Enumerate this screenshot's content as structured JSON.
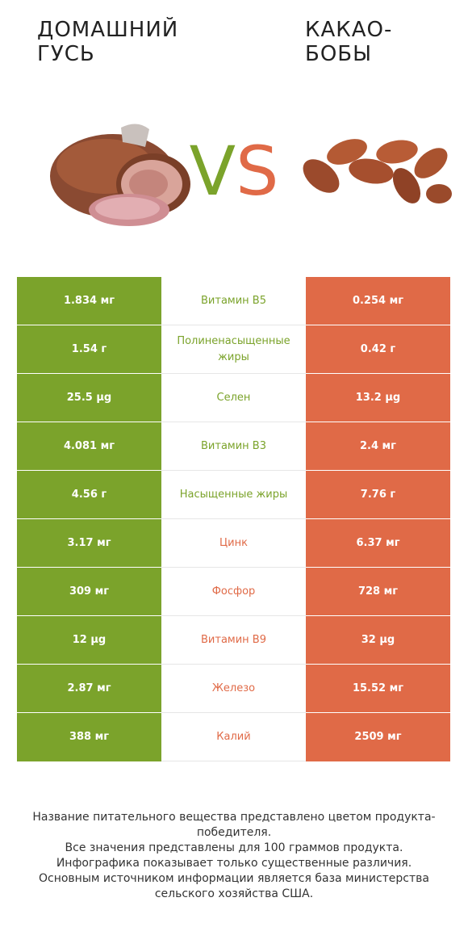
{
  "header": {
    "left_title_line1": "ДОМАШНИЙ",
    "left_title_line2": "ГУСЬ",
    "right_title_line1": "КАКАО-",
    "right_title_line2": "БОБЫ",
    "vs_v": "V",
    "vs_s": "S"
  },
  "colors": {
    "left_product": "#7ba32b",
    "right_product": "#e06a47"
  },
  "rows": [
    {
      "left": "1.834 мг",
      "name": "Витамин B5",
      "right": "0.254 мг",
      "winner": "left"
    },
    {
      "left": "1.54 г",
      "name": "Полиненасыщенные жиры",
      "right": "0.42 г",
      "winner": "left"
    },
    {
      "left": "25.5 µg",
      "name": "Селен",
      "right": "13.2 µg",
      "winner": "left"
    },
    {
      "left": "4.081 мг",
      "name": "Витамин B3",
      "right": "2.4 мг",
      "winner": "left"
    },
    {
      "left": "4.56 г",
      "name": "Насыщенные жиры",
      "right": "7.76 г",
      "winner": "left"
    },
    {
      "left": "3.17 мг",
      "name": "Цинк",
      "right": "6.37 мг",
      "winner": "right"
    },
    {
      "left": "309 мг",
      "name": "Фосфор",
      "right": "728 мг",
      "winner": "right"
    },
    {
      "left": "12 µg",
      "name": "Витамин B9",
      "right": "32 µg",
      "winner": "right"
    },
    {
      "left": "2.87 мг",
      "name": "Железо",
      "right": "15.52 мг",
      "winner": "right"
    },
    {
      "left": "388 мг",
      "name": "Калий",
      "right": "2509 мг",
      "winner": "right"
    }
  ],
  "footer": {
    "line1": "Название питательного вещества представлено цветом продукта-победителя.",
    "line2": "Все значения представлены для 100 граммов продукта.",
    "line3": "Инфографика показывает только существенные различия.",
    "line4": "Основным источником информации является база министерства сельского хозяйства США."
  }
}
